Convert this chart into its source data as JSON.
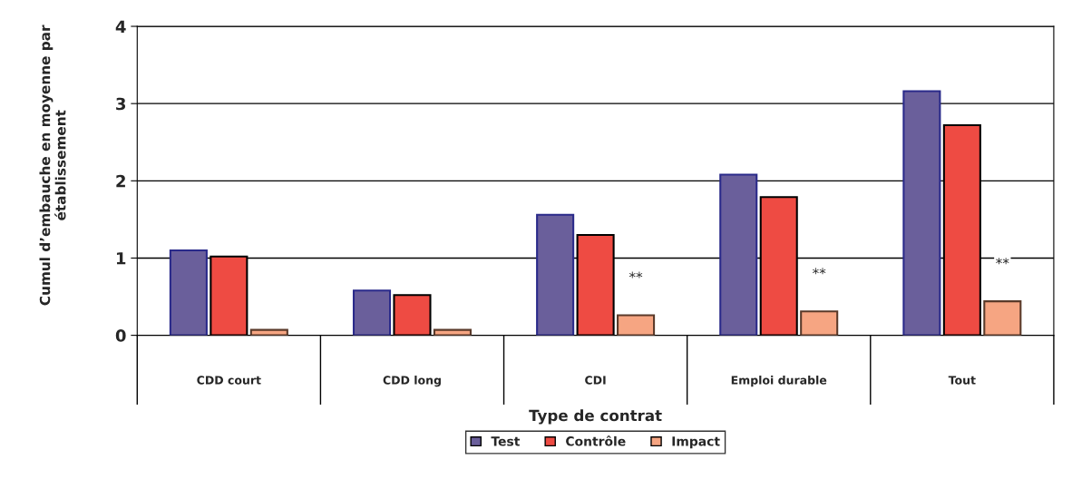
{
  "chart_data": {
    "type": "bar",
    "xlabel": "Type de contrat",
    "ylabel": "Cumul d’embauche en moyenne par établissement",
    "categories": [
      "CDD court",
      "CDD long",
      "CDI",
      "Emploi durable",
      "Tout"
    ],
    "series": [
      {
        "name": "Test",
        "color": "#6a5f9b",
        "values": [
          1.1,
          0.58,
          1.56,
          2.08,
          3.16
        ]
      },
      {
        "name": "Contrôle",
        "color": "#ee4b43",
        "values": [
          1.02,
          0.52,
          1.3,
          1.79,
          2.72
        ]
      },
      {
        "name": "Impact",
        "color": "#f6a582",
        "values": [
          0.07,
          0.07,
          0.26,
          0.31,
          0.44
        ]
      }
    ],
    "ylim": [
      0,
      4
    ],
    "yticks": [
      0,
      1,
      2,
      3,
      4
    ],
    "grid": "y",
    "legend": "bottom",
    "annotations": [
      "**",
      "**",
      "**"
    ]
  }
}
